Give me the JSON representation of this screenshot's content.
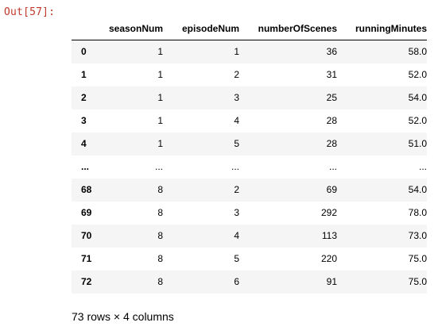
{
  "prompt_label": "Out[57]:",
  "table": {
    "columns": [
      "",
      "seasonNum",
      "episodeNum",
      "numberOfScenes",
      "runningMinutes"
    ],
    "rows": [
      {
        "index": "0",
        "cells": [
          "1",
          "1",
          "36",
          "58.0"
        ]
      },
      {
        "index": "1",
        "cells": [
          "1",
          "2",
          "31",
          "52.0"
        ]
      },
      {
        "index": "2",
        "cells": [
          "1",
          "3",
          "25",
          "54.0"
        ]
      },
      {
        "index": "3",
        "cells": [
          "1",
          "4",
          "28",
          "52.0"
        ]
      },
      {
        "index": "4",
        "cells": [
          "1",
          "5",
          "28",
          "51.0"
        ]
      },
      {
        "index": "...",
        "cells": [
          "...",
          "...",
          "...",
          "..."
        ]
      },
      {
        "index": "68",
        "cells": [
          "8",
          "2",
          "69",
          "54.0"
        ]
      },
      {
        "index": "69",
        "cells": [
          "8",
          "3",
          "292",
          "78.0"
        ]
      },
      {
        "index": "70",
        "cells": [
          "8",
          "4",
          "113",
          "73.0"
        ]
      },
      {
        "index": "71",
        "cells": [
          "8",
          "5",
          "220",
          "75.0"
        ]
      },
      {
        "index": "72",
        "cells": [
          "8",
          "6",
          "91",
          "75.0"
        ]
      }
    ]
  },
  "shape_summary": "73 rows × 4 columns",
  "colors": {
    "prompt": "#c0392b",
    "stripe": "#f5f5f5",
    "text": "#000000"
  }
}
